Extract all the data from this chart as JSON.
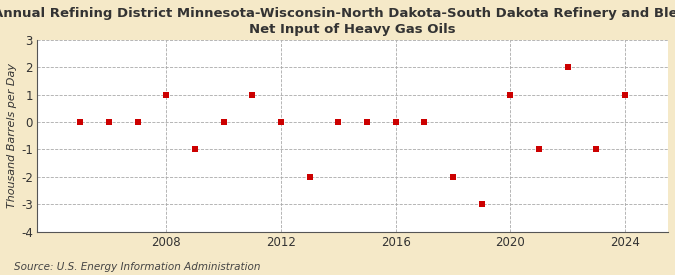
{
  "title_line1": "Annual Refining District Minnesota-Wisconsin-North Dakota-South Dakota Refinery and Blender",
  "title_line2": "Net Input of Heavy Gas Oils",
  "ylabel": "Thousand Barrels per Day",
  "source": "Source: U.S. Energy Information Administration",
  "years": [
    2005,
    2006,
    2007,
    2008,
    2009,
    2010,
    2011,
    2012,
    2013,
    2014,
    2015,
    2016,
    2017,
    2018,
    2019,
    2020,
    2021,
    2022,
    2023,
    2024
  ],
  "values": [
    0,
    0,
    0,
    1,
    -1,
    0,
    1,
    0,
    -2,
    0,
    0,
    0,
    0,
    -2,
    -3,
    1,
    -1,
    2,
    -1,
    1
  ],
  "marker_color": "#cc0000",
  "marker_size": 25,
  "figure_background": "#f5e9c8",
  "plot_background": "#ffffff",
  "grid_color": "#aaaaaa",
  "spine_color": "#555555",
  "ylim": [
    -4,
    3
  ],
  "yticks": [
    -4,
    -3,
    -2,
    -1,
    0,
    1,
    2,
    3
  ],
  "xticks": [
    2008,
    2012,
    2016,
    2020,
    2024
  ],
  "xlim": [
    2003.5,
    2025.5
  ],
  "title_fontsize": 9.5,
  "axis_label_fontsize": 8.0,
  "tick_fontsize": 8.5,
  "source_fontsize": 7.5,
  "title_color": "#333333",
  "tick_color": "#333333",
  "axis_label_color": "#333333",
  "source_color": "#444444"
}
